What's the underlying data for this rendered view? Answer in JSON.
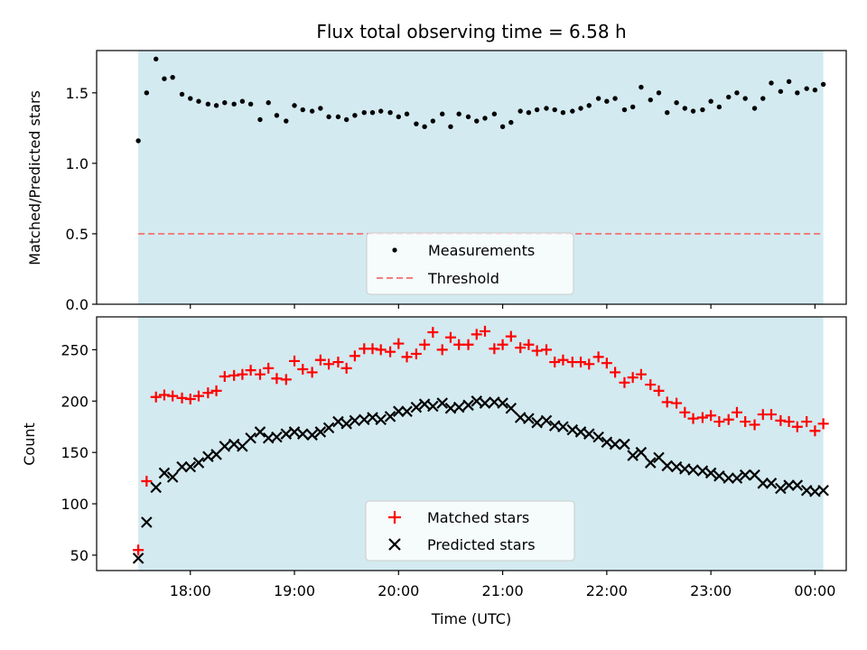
{
  "chart_data": {
    "type": "scatter",
    "title": "Flux total observing time = 6.58 h",
    "xlabel": "Time (UTC)",
    "x_tick_labels": [
      "18:00",
      "19:00",
      "20:00",
      "21:00",
      "22:00",
      "23:00",
      "00:00"
    ],
    "x_tick_hours": [
      18,
      19,
      20,
      21,
      22,
      23,
      24
    ],
    "x_range": [
      17.1,
      24.3
    ],
    "shaded_interval": [
      17.5,
      24.08
    ],
    "shade_color": "#d3eaf0",
    "x": [
      17.5,
      17.58,
      17.67,
      17.75,
      17.83,
      17.92,
      18.0,
      18.08,
      18.17,
      18.25,
      18.33,
      18.42,
      18.5,
      18.58,
      18.67,
      18.75,
      18.83,
      18.92,
      19.0,
      19.08,
      19.17,
      19.25,
      19.33,
      19.42,
      19.5,
      19.58,
      19.67,
      19.75,
      19.83,
      19.92,
      20.0,
      20.08,
      20.17,
      20.25,
      20.33,
      20.42,
      20.5,
      20.58,
      20.67,
      20.75,
      20.83,
      20.92,
      21.0,
      21.08,
      21.17,
      21.25,
      21.33,
      21.42,
      21.5,
      21.58,
      21.67,
      21.75,
      21.83,
      21.92,
      22.0,
      22.08,
      22.17,
      22.25,
      22.33,
      22.42,
      22.5,
      22.58,
      22.67,
      22.75,
      22.83,
      22.92,
      23.0,
      23.08,
      23.17,
      23.25,
      23.33,
      23.42,
      23.5,
      23.58,
      23.67,
      23.75,
      23.83,
      23.92,
      24.0,
      24.08
    ],
    "panels": [
      {
        "ylabel": "Matched/Predicted stars",
        "ylim": [
          0,
          1.8
        ],
        "y_ticks": [
          0,
          0.5,
          1.0,
          1.5
        ],
        "y_tick_labels": [
          "0.0",
          "0.5",
          "1.0",
          "1.5"
        ],
        "threshold": 0.5,
        "legend_position": "lower center",
        "series": [
          {
            "name": "Measurements",
            "marker": "dot",
            "color": "#000000",
            "values": [
              1.16,
              1.5,
              1.74,
              1.6,
              1.61,
              1.49,
              1.46,
              1.44,
              1.42,
              1.41,
              1.43,
              1.42,
              1.44,
              1.42,
              1.31,
              1.43,
              1.34,
              1.3,
              1.41,
              1.38,
              1.37,
              1.39,
              1.33,
              1.33,
              1.31,
              1.34,
              1.36,
              1.36,
              1.37,
              1.36,
              1.33,
              1.35,
              1.28,
              1.26,
              1.3,
              1.35,
              1.26,
              1.35,
              1.33,
              1.3,
              1.32,
              1.35,
              1.26,
              1.29,
              1.37,
              1.36,
              1.38,
              1.39,
              1.38,
              1.36,
              1.37,
              1.39,
              1.41,
              1.46,
              1.44,
              1.46,
              1.38,
              1.4,
              1.54,
              1.45,
              1.5,
              1.36,
              1.43,
              1.39,
              1.37,
              1.38,
              1.44,
              1.4,
              1.47,
              1.5,
              1.46,
              1.39,
              1.46,
              1.57,
              1.51,
              1.58,
              1.5,
              1.53,
              1.52,
              1.56
            ]
          },
          {
            "name": "Threshold",
            "marker": "dashed-line",
            "color": "#f08080"
          }
        ]
      },
      {
        "ylabel": "Count",
        "ylim": [
          35,
          282
        ],
        "y_ticks": [
          50,
          100,
          150,
          200,
          250
        ],
        "y_tick_labels": [
          "50",
          "100",
          "150",
          "200",
          "250"
        ],
        "legend_position": "lower center",
        "series": [
          {
            "name": "Matched stars",
            "marker": "plus",
            "color": "#ff0000",
            "values": [
              55,
              122,
              204,
              206,
              205,
              203,
              202,
              205,
              208,
              210,
              224,
              225,
              226,
              230,
              226,
              232,
              222,
              221,
              239,
              231,
              228,
              240,
              236,
              238,
              232,
              244,
              251,
              251,
              250,
              248,
              256,
              243,
              246,
              255,
              267,
              250,
              262,
              255,
              255,
              265,
              268,
              251,
              255,
              263,
              252,
              255,
              249,
              250,
              238,
              240,
              238,
              238,
              236,
              243,
              237,
              228,
              218,
              223,
              226,
              216,
              210,
              199,
              198,
              189,
              183,
              184,
              186,
              180,
              182,
              189,
              180,
              177,
              187,
              187,
              181,
              180,
              175,
              180,
              171,
              178
            ]
          },
          {
            "name": "Predicted stars",
            "marker": "x",
            "color": "#000000",
            "values": [
              47,
              82,
              116,
              130,
              126,
              136,
              136,
              140,
              146,
              148,
              156,
              158,
              156,
              164,
              170,
              164,
              165,
              168,
              170,
              168,
              167,
              170,
              174,
              180,
              178,
              181,
              182,
              184,
              182,
              185,
              190,
              190,
              194,
              197,
              195,
              198,
              193,
              194,
              196,
              200,
              198,
              199,
              198,
              193,
              184,
              183,
              179,
              181,
              176,
              175,
              172,
              170,
              168,
              165,
              160,
              158,
              158,
              147,
              150,
              140,
              145,
              137,
              136,
              134,
              133,
              132,
              130,
              127,
              125,
              125,
              128,
              128,
              120,
              120,
              115,
              118,
              118,
              113,
              112,
              113
            ]
          }
        ]
      }
    ]
  }
}
